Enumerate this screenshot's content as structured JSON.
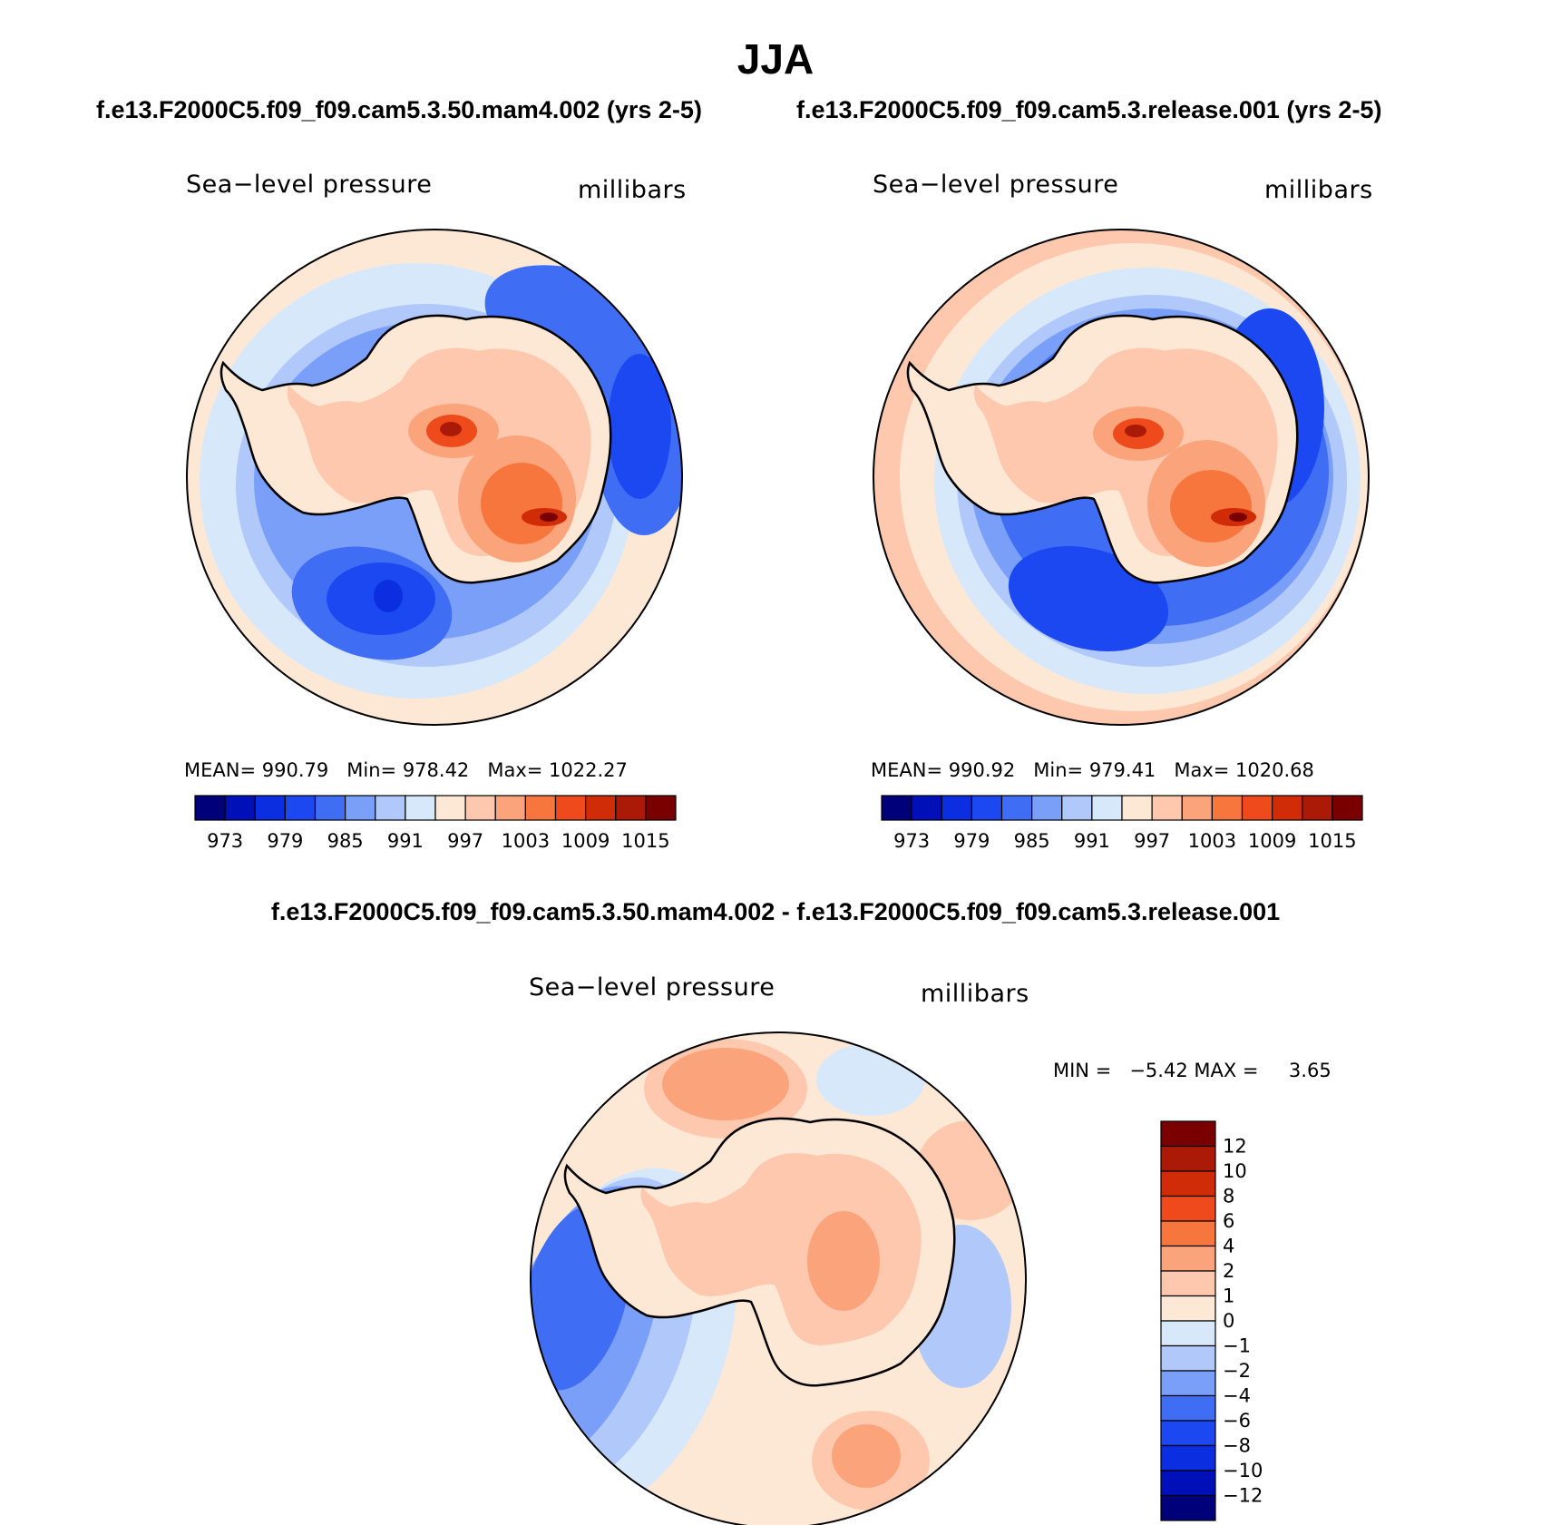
{
  "season": "JJA",
  "panels": [
    {
      "case_title": "f.e13.F2000C5.f09_f09.cam5.3.50.mam4.002 (yrs 2-5)",
      "variable": "Sea−level pressure",
      "units": "millibars",
      "mean_label": "MEAN=",
      "mean": "990.79",
      "min_label": "Min=",
      "min": "978.42",
      "max_label": "Max=",
      "max": "1022.27"
    },
    {
      "case_title": "f.e13.F2000C5.f09_f09.cam5.3.release.001 (yrs 2-5)",
      "variable": "Sea−level pressure",
      "units": "millibars",
      "mean_label": "MEAN=",
      "mean": "990.92",
      "min_label": "Min=",
      "min": "979.41",
      "max_label": "Max=",
      "max": "1020.68"
    }
  ],
  "difference": {
    "title": "f.e13.F2000C5.f09_f09.cam5.3.50.mam4.002 - f.e13.F2000C5.f09_f09.cam5.3.release.001",
    "variable": "Sea−level pressure",
    "units": "millibars",
    "min_label": "MIN =",
    "min": "−5.42",
    "max_label": "MAX =",
    "max": "3.65"
  },
  "chart_data": [
    {
      "type": "heatmap",
      "title": "Sea-level pressure",
      "units": "millibars",
      "projection": "south polar stereographic",
      "stats": {
        "mean": 990.79,
        "min": 978.42,
        "max": 1022.27
      },
      "colorbar": {
        "orientation": "horizontal",
        "levels": [
          973,
          976,
          979,
          982,
          985,
          988,
          991,
          994,
          997,
          1000,
          1003,
          1006,
          1009,
          1012,
          1015
        ],
        "tick_labels": [
          "973",
          "979",
          "985",
          "991",
          "997",
          "1003",
          "1009",
          "1015"
        ]
      }
    },
    {
      "type": "heatmap",
      "title": "Sea-level pressure",
      "units": "millibars",
      "projection": "south polar stereographic",
      "stats": {
        "mean": 990.92,
        "min": 979.41,
        "max": 1020.68
      },
      "colorbar": {
        "orientation": "horizontal",
        "levels": [
          973,
          976,
          979,
          982,
          985,
          988,
          991,
          994,
          997,
          1000,
          1003,
          1006,
          1009,
          1012,
          1015
        ],
        "tick_labels": [
          "973",
          "979",
          "985",
          "991",
          "997",
          "1003",
          "1009",
          "1015"
        ]
      }
    },
    {
      "type": "heatmap",
      "title": "Sea-level pressure (difference)",
      "units": "millibars",
      "projection": "south polar stereographic",
      "stats": {
        "min": -5.42,
        "max": 3.65
      },
      "colorbar": {
        "orientation": "vertical",
        "levels": [
          12,
          10,
          8,
          6,
          4,
          2,
          1,
          0,
          -1,
          -2,
          -4,
          -6,
          -8,
          -10,
          -12
        ],
        "tick_labels": [
          "12",
          "10",
          "8",
          "6",
          "4",
          "2",
          "1",
          "0",
          "−1",
          "−2",
          "−4",
          "−6",
          "−8",
          "−10",
          "−12"
        ]
      }
    }
  ],
  "colors": {
    "seq_colorbar": [
      "#00007a",
      "#0010b8",
      "#0a2ee0",
      "#1c48f2",
      "#3f6ef5",
      "#7a9ff8",
      "#b0c8fa",
      "#d8e8fb",
      "#fde8d6",
      "#fdc8ad",
      "#fba47c",
      "#f7763e",
      "#ee4a1c",
      "#d02c08",
      "#aa1a06",
      "#7a0000"
    ],
    "diff_colorbar": [
      "#7a0000",
      "#aa1a06",
      "#d02c08",
      "#ee4a1c",
      "#f7763e",
      "#fba47c",
      "#fdc8ad",
      "#fde8d6",
      "#d8e8fb",
      "#b0c8fa",
      "#7a9ff8",
      "#3f6ef5",
      "#1c48f2",
      "#0a2ee0",
      "#0010b8",
      "#00007a"
    ]
  }
}
